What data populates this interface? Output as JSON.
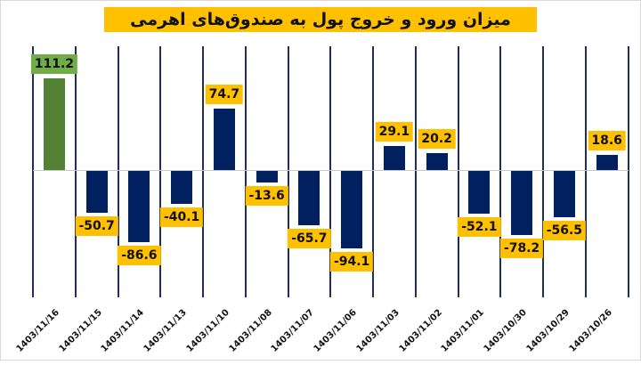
{
  "title": "میزان ورود و خروج پول به صندوق‌های اهرمی",
  "colors": {
    "positive_first": "#548235",
    "bar": "#002060",
    "label_bg": "#ffc000",
    "label_bg_first": "#70ad47",
    "grid": "#1f2f5a"
  },
  "chart_data": {
    "type": "bar",
    "title": "میزان ورود و خروج پول به صندوق‌های اهرمی",
    "xlabel": "",
    "ylabel": "",
    "categories": [
      "1403/11/16",
      "1403/11/15",
      "1403/11/14",
      "1403/11/13",
      "1403/11/10",
      "1403/11/08",
      "1403/11/07",
      "1403/11/06",
      "1403/11/03",
      "1403/11/02",
      "1403/11/01",
      "1403/10/30",
      "1403/10/29",
      "1403/10/26"
    ],
    "values": [
      111.2,
      -50.7,
      -86.6,
      -40.1,
      74.7,
      -13.6,
      -65.7,
      -94.1,
      29.1,
      20.2,
      -52.1,
      -78.2,
      -56.5,
      18.6
    ],
    "value_labels": [
      "111.2",
      "-50.7",
      "-86.6",
      "-40.1",
      "74.7",
      "-13.6",
      "-65.7",
      "-94.1",
      "29.1",
      "20.2",
      "-52.1",
      "-78.2",
      "-56.5",
      "18.6"
    ],
    "ylim": [
      -120,
      120
    ],
    "grid": "vertical category separators",
    "legend": "none"
  }
}
